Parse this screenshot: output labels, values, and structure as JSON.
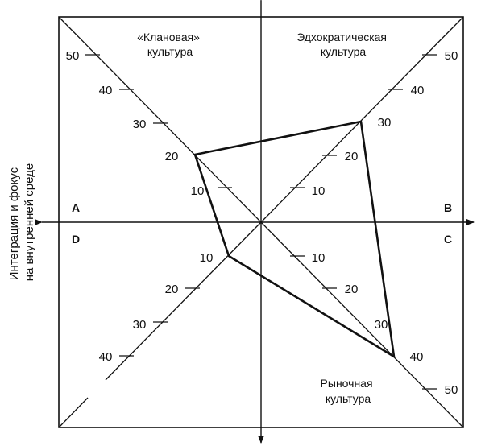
{
  "colors": {
    "ink": "#111111",
    "background": "#ffffff"
  },
  "y_axis_label": [
    "Интеграция и фокус",
    "на внутренней среде"
  ],
  "quadrant_titles": {
    "clan": [
      "«Клановая»",
      "культура"
    ],
    "adhocracy": [
      "Эдхократическая",
      "культура"
    ],
    "market": [
      "Рыночная",
      "культура"
    ]
  },
  "quadrant_letters": {
    "a": "A",
    "b": "B",
    "c": "C",
    "d": "D"
  },
  "diagonal_ticks": {
    "upper_left": [
      "50",
      "40",
      "30",
      "20",
      "10"
    ],
    "upper_right": [
      "50",
      "40",
      "30",
      "20",
      "10"
    ],
    "lower_left": [
      "10",
      "20",
      "30",
      "40"
    ],
    "lower_right": [
      "10",
      "20",
      "30",
      "40",
      "50"
    ]
  },
  "profile": {
    "clan": 20,
    "adhocracy": 30,
    "market": 40,
    "hierarchy": 10
  }
}
